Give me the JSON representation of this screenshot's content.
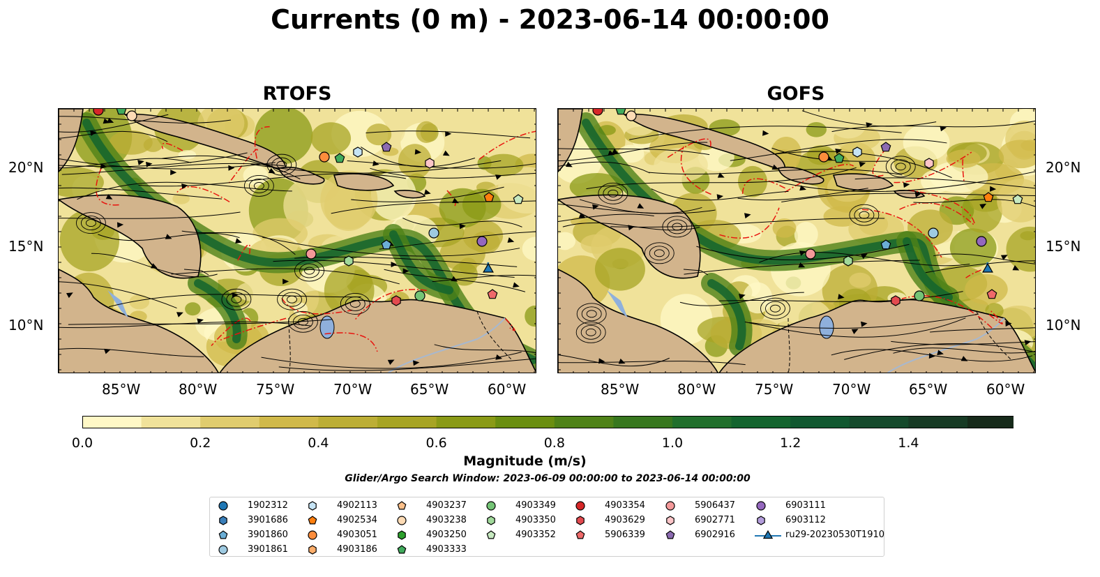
{
  "title": "Currents (0 m) - 2023-06-14 00:00:00",
  "panels": [
    {
      "title": "RTOFS"
    },
    {
      "title": "GOFS"
    }
  ],
  "lon_ticks": [
    "85°W",
    "80°W",
    "75°W",
    "70°W",
    "65°W",
    "60°W"
  ],
  "lat_ticks": [
    "20°N",
    "15°N",
    "10°N"
  ],
  "colorbar": {
    "label": "Magnitude (m/s)",
    "ticks": [
      "0.0",
      "0.2",
      "0.4",
      "0.6",
      "0.8",
      "1.0",
      "1.2",
      "1.4"
    ],
    "colors": [
      "#fff8c6",
      "#f0e29a",
      "#e0cc6e",
      "#d0b94a",
      "#bcae36",
      "#a7a424",
      "#8a9a16",
      "#6a8e10",
      "#4f8218",
      "#37771e",
      "#216f2c",
      "#13642e",
      "#115830",
      "#154a2c",
      "#173b25",
      "#162a1a"
    ]
  },
  "search_window": "Glider/Argo Search Window: 2023-06-09 00:00:00 to 2023-06-14 00:00:00",
  "legend": [
    {
      "label": "1902312",
      "marker": "circle",
      "color": "#1f77b4"
    },
    {
      "label": "3901686",
      "marker": "hexagon",
      "color": "#3a7fba"
    },
    {
      "label": "3901860",
      "marker": "pentagon",
      "color": "#6baed6"
    },
    {
      "label": "3901861",
      "marker": "circle",
      "color": "#9ecae1"
    },
    {
      "label": "4902113",
      "marker": "hexagon",
      "color": "#c6e4f5"
    },
    {
      "label": "4902534",
      "marker": "pentagon",
      "color": "#ff7f0e"
    },
    {
      "label": "4903051",
      "marker": "circle",
      "color": "#fd8d3c"
    },
    {
      "label": "4903186",
      "marker": "hexagon",
      "color": "#fdae6b"
    },
    {
      "label": "4903237",
      "marker": "pentagon",
      "color": "#fdc08a"
    },
    {
      "label": "4903238",
      "marker": "circle",
      "color": "#fddbb5"
    },
    {
      "label": "4903250",
      "marker": "hexagon",
      "color": "#2ca02c"
    },
    {
      "label": "4903333",
      "marker": "pentagon",
      "color": "#41ab5d"
    },
    {
      "label": "4903349",
      "marker": "circle",
      "color": "#74c476"
    },
    {
      "label": "4903350",
      "marker": "hexagon",
      "color": "#a1d99b"
    },
    {
      "label": "4903352",
      "marker": "pentagon",
      "color": "#c7e9c0"
    },
    {
      "label": "4903354",
      "marker": "circle",
      "color": "#d62728"
    },
    {
      "label": "4903629",
      "marker": "hexagon",
      "color": "#e34a4f"
    },
    {
      "label": "5906339",
      "marker": "pentagon",
      "color": "#ef6a6a"
    },
    {
      "label": "5906437",
      "marker": "circle",
      "color": "#f4999a"
    },
    {
      "label": "6902771",
      "marker": "hexagon",
      "color": "#fcc5c8"
    },
    {
      "label": "6902916",
      "marker": "pentagon",
      "color": "#8c6bb1"
    },
    {
      "label": "6903111",
      "marker": "circle",
      "color": "#9467bd"
    },
    {
      "label": "6903112",
      "marker": "hexagon",
      "color": "#b39ddb"
    },
    {
      "label": "ru29-20230530T1910",
      "marker": "triangle-line",
      "color": "#1f77b4"
    }
  ],
  "colors": {
    "land": "#d2b48c",
    "lakes": "#8fb0dc",
    "rivers": "#a7b8cf",
    "contour": "#e8140e",
    "streamline": "#000000"
  }
}
